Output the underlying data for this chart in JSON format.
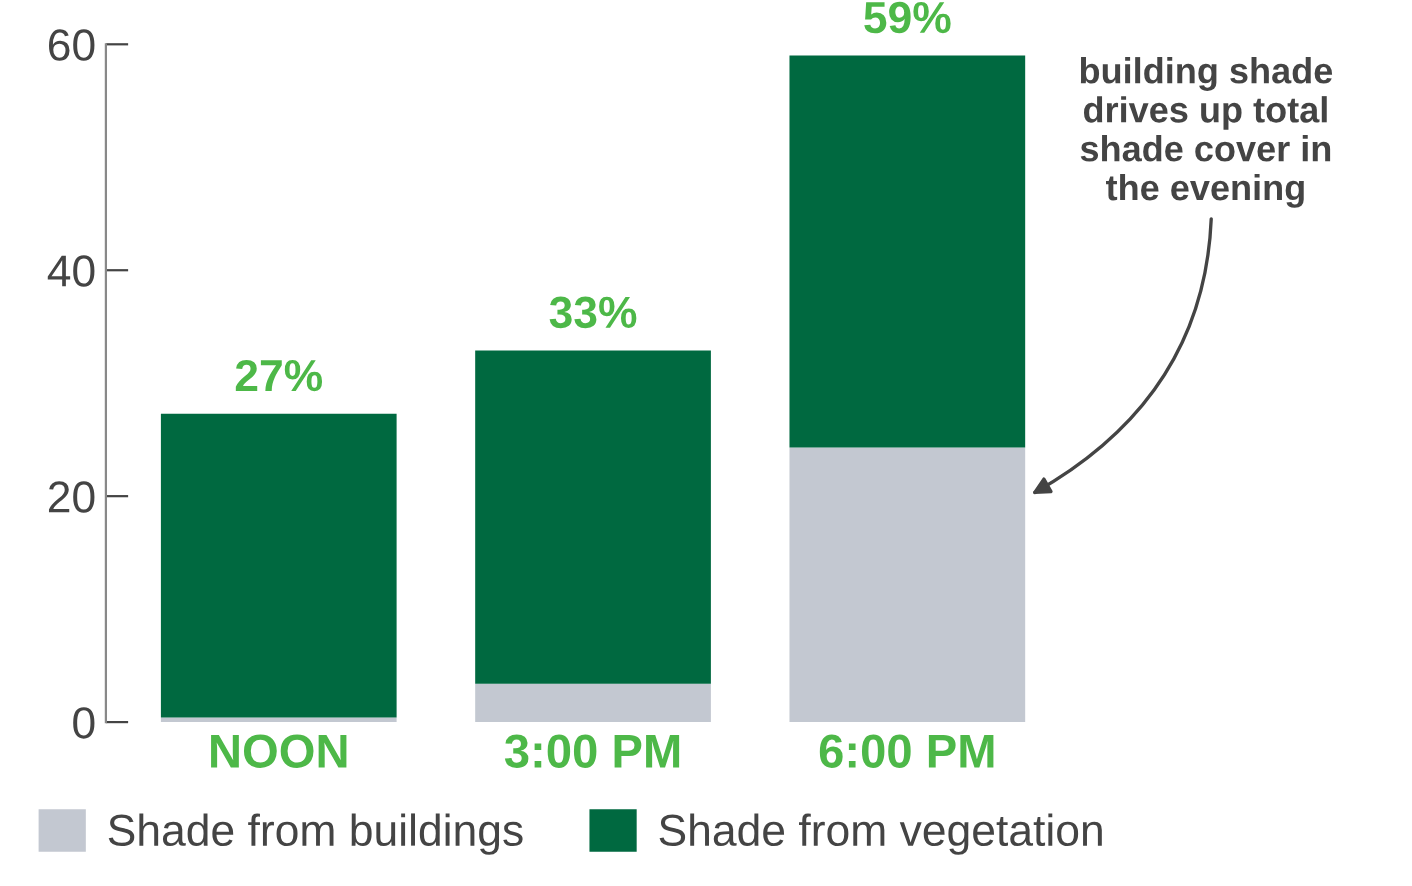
{
  "chart_data": {
    "type": "bar",
    "stacked": true,
    "categories": [
      "NOON",
      "3:00 PM",
      "6:00 PM"
    ],
    "series": [
      {
        "name": "Shade from buildings",
        "color": "#c3c8d1",
        "values": [
          0.4,
          3.4,
          24.3
        ]
      },
      {
        "name": "Shade from vegetation",
        "color": "#006940",
        "values": [
          26.9,
          29.5,
          34.7
        ]
      }
    ],
    "totals": [
      "27%",
      "33%",
      "59%"
    ],
    "ylim": [
      0,
      60
    ],
    "yticks": [
      0,
      20,
      40,
      60
    ],
    "grid": false,
    "legend": "bottom",
    "annotations": [
      "building shade\ndrives up total\nshade cover in\nthe evening"
    ]
  }
}
